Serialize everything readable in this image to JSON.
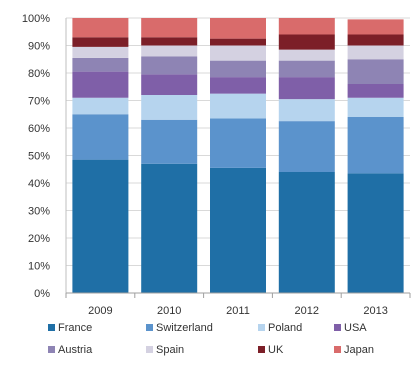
{
  "chart_data": {
    "type": "bar",
    "stacked": true,
    "categories": [
      "2009",
      "2010",
      "2011",
      "2012",
      "2013"
    ],
    "ylim": [
      0,
      100
    ],
    "yticks": [
      "0%",
      "10%",
      "20%",
      "30%",
      "40%",
      "50%",
      "60%",
      "70%",
      "80%",
      "90%",
      "100%"
    ],
    "ytick_values": [
      0,
      10,
      20,
      30,
      40,
      50,
      60,
      70,
      80,
      90,
      100
    ],
    "grid": true,
    "legend_position": "bottom",
    "series": [
      {
        "name": "France",
        "color": "#1f6fa6",
        "values": [
          48.5,
          47,
          45.5,
          44,
          43.5
        ]
      },
      {
        "name": "Switzerland",
        "color": "#5b93cc",
        "values": [
          16.5,
          16,
          18,
          18.5,
          20.5
        ]
      },
      {
        "name": "Poland",
        "color": "#b6d4ee",
        "values": [
          6,
          9,
          9,
          8,
          7
        ]
      },
      {
        "name": "USA",
        "color": "#7f5fa8",
        "values": [
          9.5,
          7.5,
          6,
          8,
          5
        ]
      },
      {
        "name": "Austria",
        "color": "#8e84b4",
        "values": [
          5,
          6.5,
          6,
          6,
          9
        ]
      },
      {
        "name": "Spain",
        "color": "#d4d1e1",
        "values": [
          4,
          4,
          5.5,
          4,
          5
        ]
      },
      {
        "name": "UK",
        "color": "#7c1f28",
        "values": [
          3.5,
          3,
          2.5,
          5.5,
          4
        ]
      },
      {
        "name": "Japan",
        "color": "#d96b6b",
        "values": [
          7,
          7,
          7.5,
          6,
          5.5
        ]
      }
    ]
  }
}
